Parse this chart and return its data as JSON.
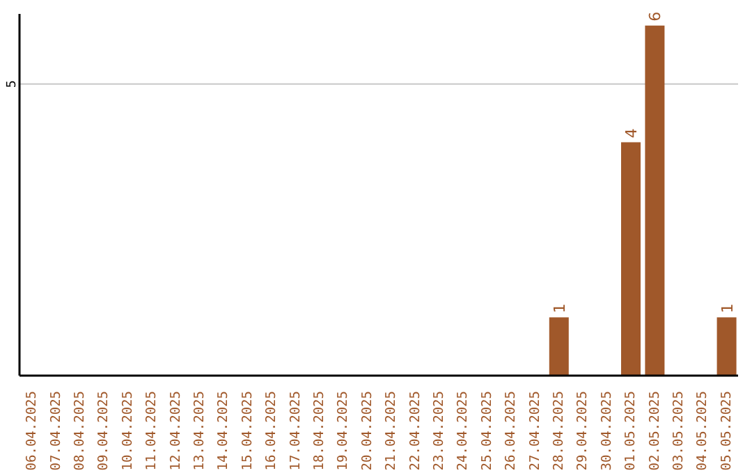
{
  "chart_data": {
    "type": "bar",
    "categories": [
      "06.04.2025",
      "07.04.2025",
      "08.04.2025",
      "09.04.2025",
      "10.04.2025",
      "11.04.2025",
      "12.04.2025",
      "13.04.2025",
      "14.04.2025",
      "15.04.2025",
      "16.04.2025",
      "17.04.2025",
      "18.04.2025",
      "19.04.2025",
      "20.04.2025",
      "21.04.2025",
      "22.04.2025",
      "23.04.2025",
      "24.04.2025",
      "25.04.2025",
      "26.04.2025",
      "27.04.2025",
      "28.04.2025",
      "29.04.2025",
      "30.04.2025",
      "01.05.2025",
      "02.05.2025",
      "03.05.2025",
      "04.05.2025",
      "05.05.2025"
    ],
    "values": [
      null,
      null,
      null,
      null,
      null,
      null,
      null,
      null,
      null,
      null,
      null,
      null,
      null,
      null,
      null,
      null,
      null,
      null,
      null,
      null,
      null,
      null,
      1,
      null,
      null,
      4,
      6,
      null,
      null,
      1
    ],
    "data_labels": true,
    "color": "#a0582a",
    "ylim": [
      0,
      6.2
    ],
    "yticks": [
      5
    ],
    "grid": "y"
  }
}
